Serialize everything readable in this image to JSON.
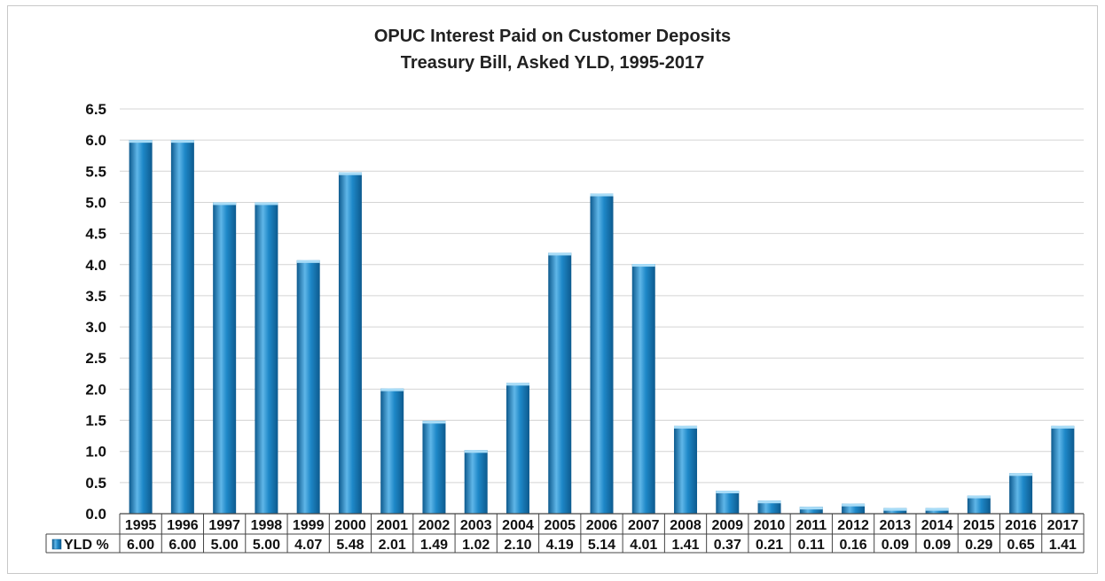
{
  "chart_data": {
    "type": "bar",
    "title": "OPUC Interest Paid on Customer Deposits",
    "subtitle": "Treasury Bill, Asked YLD, 1995-2017",
    "categories": [
      "1995",
      "1996",
      "1997",
      "1998",
      "1999",
      "2000",
      "2001",
      "2002",
      "2003",
      "2004",
      "2005",
      "2006",
      "2007",
      "2008",
      "2009",
      "2010",
      "2011",
      "2012",
      "2013",
      "2014",
      "2015",
      "2016",
      "2017"
    ],
    "series": [
      {
        "name": "YLD %",
        "values": [
          6.0,
          6.0,
          5.0,
          5.0,
          4.07,
          5.48,
          2.01,
          1.49,
          1.02,
          2.1,
          4.19,
          5.14,
          4.01,
          1.41,
          0.37,
          0.21,
          0.11,
          0.16,
          0.09,
          0.09,
          0.29,
          0.65,
          1.41
        ],
        "labels": [
          "6.00",
          "6.00",
          "5.00",
          "5.00",
          "4.07",
          "5.48",
          "2.01",
          "1.49",
          "1.02",
          "2.10",
          "4.19",
          "5.14",
          "4.01",
          "1.41",
          "0.37",
          "0.21",
          "0.11",
          "0.16",
          "0.09",
          "0.09",
          "0.29",
          "0.65",
          "1.41"
        ]
      }
    ],
    "yticks": [
      "0.0",
      "0.5",
      "1.0",
      "1.5",
      "2.0",
      "2.5",
      "3.0",
      "3.5",
      "4.0",
      "4.5",
      "5.0",
      "5.5",
      "6.0",
      "6.5"
    ],
    "ylim": [
      0,
      6.5
    ],
    "grid": true,
    "legend": "data-table-left",
    "colors": {
      "bar": "#1e88c8",
      "bar_dark": "#0d5a8e",
      "bar_light": "#5fb6e8",
      "grid": "#d4d4d4",
      "axis": "#444444",
      "text": "#111111"
    }
  }
}
